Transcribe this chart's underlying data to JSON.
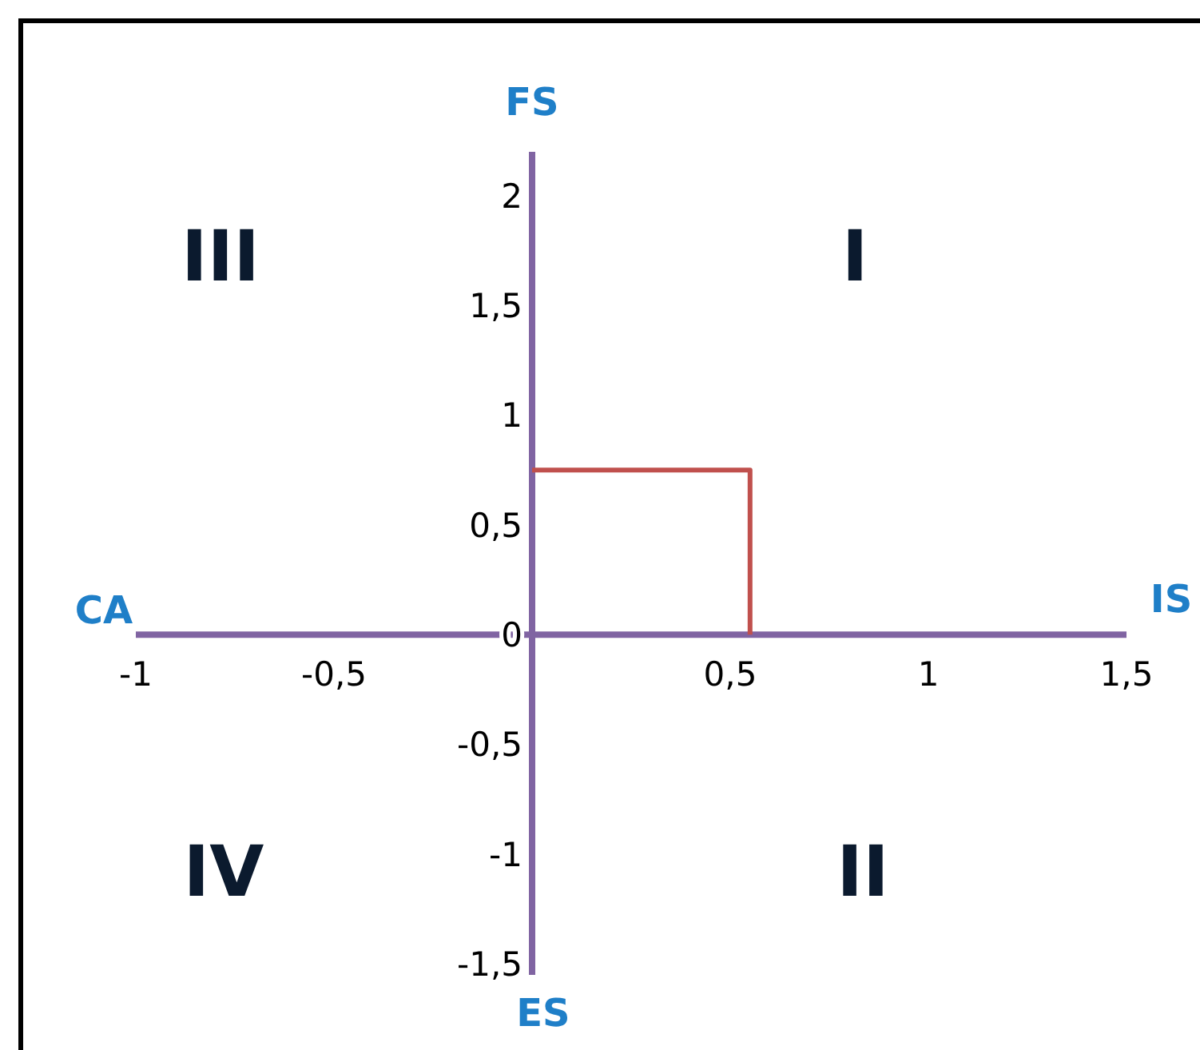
{
  "chart_data": {
    "type": "step",
    "xlabel": "IS",
    "ylabel": "FS",
    "series": [
      {
        "color": "#c0504d",
        "x": [
          0,
          0.55
        ],
        "values": [
          0.75,
          0
        ]
      }
    ],
    "xlim": [
      -1,
      1.5
    ],
    "ylim": [
      -1.55,
      2.2
    ],
    "xticks": [
      {
        "value": -1,
        "label": "-1"
      },
      {
        "value": -0.5,
        "label": "-0,5"
      },
      {
        "value": 0.5,
        "label": "0,5"
      },
      {
        "value": 1,
        "label": "1"
      },
      {
        "value": 1.5,
        "label": "1,5"
      }
    ],
    "yticks": [
      {
        "value": -1.5,
        "label": "-1,5"
      },
      {
        "value": -1,
        "label": "-1"
      },
      {
        "value": -0.5,
        "label": "-0,5"
      },
      0,
      {
        "value": 0.5,
        "label": "0,5"
      },
      {
        "value": 1,
        "label": "1"
      },
      {
        "value": 1.5,
        "label": "1,5"
      },
      {
        "value": 2,
        "label": "2"
      }
    ],
    "grid": false,
    "marker": "none",
    "line_style": "solid",
    "annotations": [
      "CA",
      "ES",
      "I",
      "II",
      "III",
      "IV"
    ]
  }
}
